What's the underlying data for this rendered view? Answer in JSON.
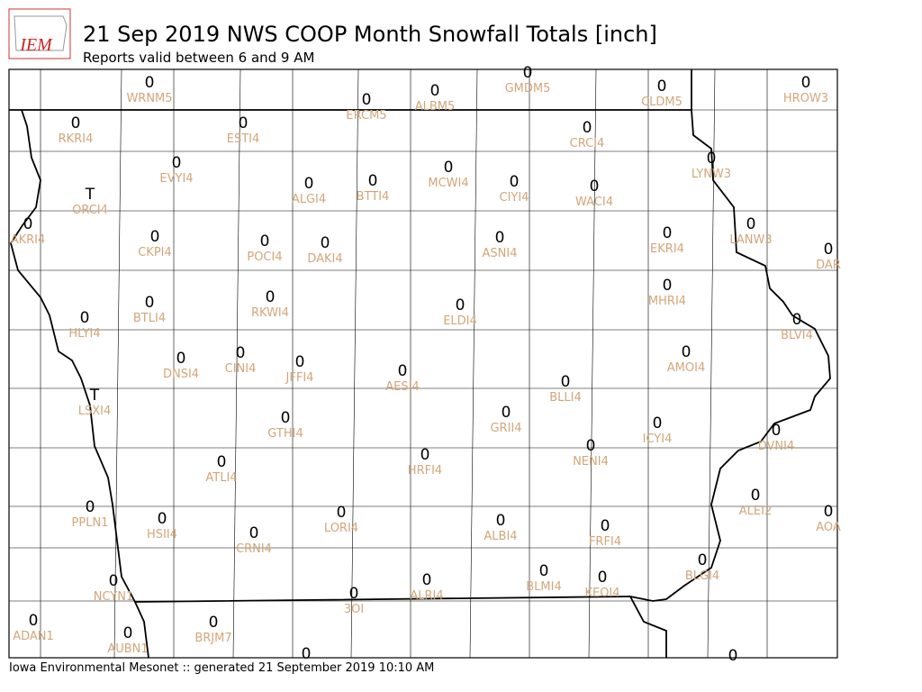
{
  "logo": "IEM",
  "title": "21 Sep 2019 NWS COOP Month Snowfall Totals [inch]",
  "subtitle": "Reports valid between 6 and 9 AM",
  "footer": "Iowa Environmental Mesonet :: generated 21 September 2019 10:10 AM",
  "stations": [
    {
      "id": "WRNM5",
      "value": 0
    },
    {
      "id": "ERCM5",
      "value": 0
    },
    {
      "id": "ALBM5",
      "value": 0
    },
    {
      "id": "GMDM5",
      "value": 0
    },
    {
      "id": "CLDM5",
      "value": 0
    },
    {
      "id": "HROW3",
      "value": 0
    },
    {
      "id": "RKRI4",
      "value": 0
    },
    {
      "id": "ESTI4",
      "value": 0
    },
    {
      "id": "CRCI4",
      "value": 0
    },
    {
      "id": "LYNW3",
      "value": 0
    },
    {
      "id": "EVYI4",
      "value": 0
    },
    {
      "id": "ALGI4",
      "value": 0
    },
    {
      "id": "BTTI4",
      "value": 0
    },
    {
      "id": "MCWI4",
      "value": 0
    },
    {
      "id": "CIYI4",
      "value": 0
    },
    {
      "id": "WACI4",
      "value": 0
    },
    {
      "id": "ORCI4",
      "value": "T"
    },
    {
      "id": "AKRI4",
      "value": 0
    },
    {
      "id": "CKPI4",
      "value": 0
    },
    {
      "id": "POCI4",
      "value": 0
    },
    {
      "id": "DAKI4",
      "value": 0
    },
    {
      "id": "ASNI4",
      "value": 0
    },
    {
      "id": "EKRI4",
      "value": 0
    },
    {
      "id": "LANW3",
      "value": 0
    },
    {
      "id": "DAR",
      "value": 0
    },
    {
      "id": "BTLI4",
      "value": 0
    },
    {
      "id": "RKWI4",
      "value": 0
    },
    {
      "id": "ELDI4",
      "value": 0
    },
    {
      "id": "MHRI4",
      "value": 0
    },
    {
      "id": "BLVI4",
      "value": 0
    },
    {
      "id": "HLYI4",
      "value": 0
    },
    {
      "id": "DNSI4",
      "value": 0
    },
    {
      "id": "CINI4",
      "value": 0
    },
    {
      "id": "JFFI4",
      "value": 0
    },
    {
      "id": "AESI4",
      "value": 0
    },
    {
      "id": "BLLI4",
      "value": 0
    },
    {
      "id": "AMOI4",
      "value": 0
    },
    {
      "id": "LSXI4",
      "value": "T"
    },
    {
      "id": "GTHI4",
      "value": 0
    },
    {
      "id": "GRII4",
      "value": 0
    },
    {
      "id": "ICYI4",
      "value": 0
    },
    {
      "id": "DVNI4",
      "value": 0
    },
    {
      "id": "NENI4",
      "value": 0
    },
    {
      "id": "HRFI4",
      "value": 0
    },
    {
      "id": "ATLI4",
      "value": 0
    },
    {
      "id": "ALEI2",
      "value": 0
    },
    {
      "id": "AOA",
      "value": 0
    },
    {
      "id": "PPLN1",
      "value": 0
    },
    {
      "id": "HSII4",
      "value": 0
    },
    {
      "id": "LORI4",
      "value": 0
    },
    {
      "id": "ALBI4",
      "value": 0
    },
    {
      "id": "FRFI4",
      "value": 0
    },
    {
      "id": "CRNI4",
      "value": 0
    },
    {
      "id": "BLGI4",
      "value": 0
    },
    {
      "id": "NCYN1",
      "value": 0
    },
    {
      "id": "BLMI4",
      "value": 0
    },
    {
      "id": "KEOI4",
      "value": 0
    },
    {
      "id": "ALRI4",
      "value": 0
    },
    {
      "id": "3OI",
      "value": 0
    },
    {
      "id": "ADAN1",
      "value": 0
    },
    {
      "id": "AUBN1",
      "value": 0
    },
    {
      "id": "BRJM7",
      "value": 0
    },
    {
      "id": null,
      "value": 0
    },
    {
      "id": null,
      "value": 0
    }
  ]
}
